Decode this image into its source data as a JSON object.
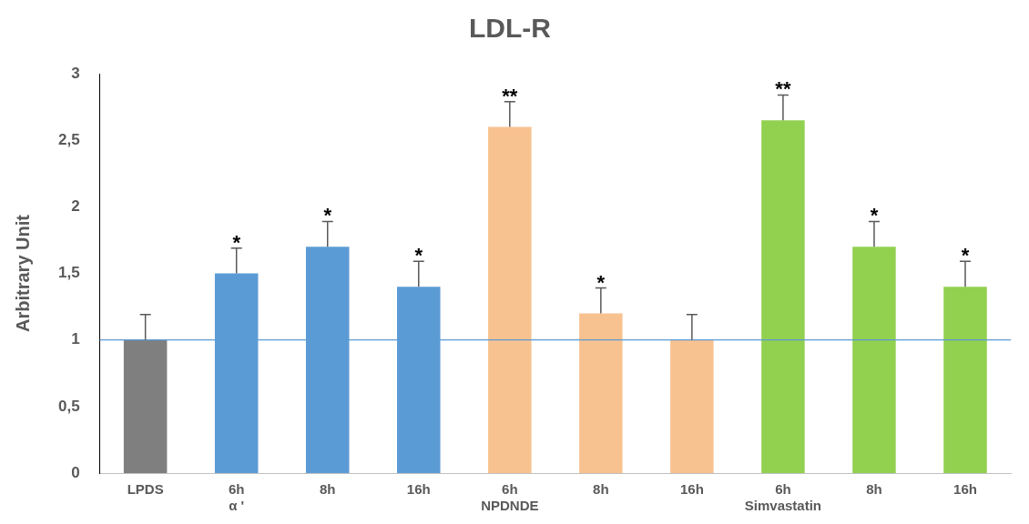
{
  "chart_data": {
    "type": "bar",
    "title": "LDL-R",
    "ylabel": "Arbitrary Unit",
    "categories": [
      "LPDS",
      "6h\nα '",
      "8h",
      "16h",
      "6h\nNPDNDE",
      "8h",
      "16h",
      "6h\nSimvastatin",
      "8h",
      "16h"
    ],
    "values": [
      1,
      1.5,
      1.7,
      1.4,
      2.6,
      1.2,
      1.0,
      2.65,
      1.7,
      1.4
    ],
    "colors": [
      "#7f7f7f",
      "#5b9bd5",
      "#5b9bd5",
      "#5b9bd5",
      "#f8c290",
      "#f8c290",
      "#f8c290",
      "#92d050",
      "#92d050",
      "#92d050"
    ],
    "errors": [
      [
        1,
        1.19
      ],
      [
        1.5,
        1.69
      ],
      [
        1.7,
        1.89
      ],
      [
        1.4,
        1.59
      ],
      [
        2.6,
        2.79
      ],
      [
        1.2,
        1.39
      ],
      [
        1.0,
        1.19
      ],
      [
        2.65,
        2.84
      ],
      [
        1.7,
        1.89
      ],
      [
        1.4,
        1.59
      ]
    ],
    "value_labels": [
      null,
      "*",
      "*",
      "*",
      "**",
      "*",
      null,
      "**",
      "*",
      "*"
    ],
    "ylim": [
      0,
      3
    ],
    "yticks": [
      0,
      {
        "value": 0.5,
        "label": "0,5"
      },
      1,
      {
        "value": 1.5,
        "label": "1,5"
      },
      2,
      {
        "value": 2.5,
        "label": "2,5"
      },
      3
    ],
    "ref_lines": [
      {
        "axis": "y",
        "value": 1,
        "color": "#5b9bd5"
      }
    ],
    "grid": false,
    "legend": false
  }
}
